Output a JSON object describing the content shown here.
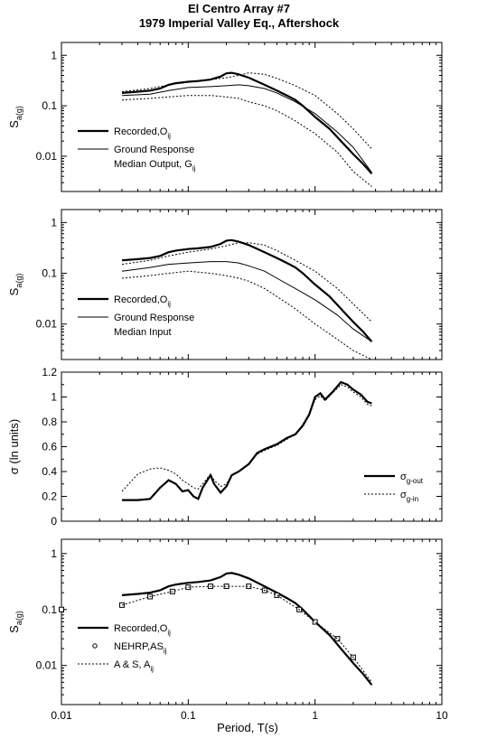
{
  "title": {
    "line1": "El Centro Array #7",
    "line2": "1979 Imperial Valley Eq., Aftershock"
  },
  "xlabel": "Period, T(s)",
  "chart_data": [
    {
      "type": "line",
      "ylabel": "S_a(g)",
      "xscale": "log",
      "yscale": "log",
      "xlim": [
        0.01,
        10
      ],
      "ylim": [
        0.002,
        1.8
      ],
      "yticks": [
        {
          "v": 0.01,
          "l": "0.01"
        },
        {
          "v": 0.1,
          "l": "0.1"
        },
        {
          "v": 1,
          "l": "1"
        }
      ],
      "legend_position": "lower-left",
      "legend": [
        {
          "series": 0,
          "lines": [
            "Recorded,O_ij"
          ]
        },
        {
          "series": 1,
          "lines": [
            "Ground Response",
            "Median Output, G_ij"
          ]
        }
      ],
      "series": [
        {
          "name": "Recorded,O_ij",
          "style": "thick",
          "x": [
            0.03,
            0.04,
            0.05,
            0.06,
            0.07,
            0.08,
            0.1,
            0.12,
            0.15,
            0.18,
            0.2,
            0.22,
            0.25,
            0.3,
            0.4,
            0.5,
            0.6,
            0.7,
            0.8,
            1.0,
            1.3,
            1.6,
            2.0,
            2.4,
            2.8
          ],
          "y": [
            0.18,
            0.19,
            0.2,
            0.22,
            0.26,
            0.28,
            0.3,
            0.31,
            0.33,
            0.38,
            0.44,
            0.45,
            0.42,
            0.36,
            0.26,
            0.2,
            0.16,
            0.13,
            0.1,
            0.06,
            0.035,
            0.02,
            0.011,
            0.007,
            0.0045
          ]
        },
        {
          "style": "thin",
          "x": [
            0.03,
            0.05,
            0.07,
            0.1,
            0.15,
            0.2,
            0.25,
            0.3,
            0.4,
            0.5,
            0.7,
            1.0,
            1.5,
            2.0,
            2.8
          ],
          "y": [
            0.16,
            0.17,
            0.2,
            0.23,
            0.24,
            0.25,
            0.26,
            0.25,
            0.22,
            0.18,
            0.12,
            0.07,
            0.03,
            0.015,
            0.0048
          ]
        },
        {
          "style": "dotted",
          "x": [
            0.03,
            0.05,
            0.07,
            0.1,
            0.15,
            0.2,
            0.25,
            0.3,
            0.4,
            0.5,
            0.7,
            1.0,
            1.5,
            2.0,
            2.8
          ],
          "y": [
            0.19,
            0.22,
            0.26,
            0.3,
            0.33,
            0.36,
            0.4,
            0.45,
            0.42,
            0.35,
            0.25,
            0.16,
            0.07,
            0.035,
            0.014
          ]
        },
        {
          "style": "dotted",
          "x": [
            0.03,
            0.05,
            0.07,
            0.1,
            0.15,
            0.2,
            0.25,
            0.3,
            0.4,
            0.5,
            0.7,
            1.0,
            1.5,
            2.0,
            2.8
          ],
          "y": [
            0.13,
            0.14,
            0.15,
            0.16,
            0.16,
            0.15,
            0.14,
            0.12,
            0.1,
            0.08,
            0.05,
            0.028,
            0.012,
            0.005,
            0.0025
          ]
        }
      ]
    },
    {
      "type": "line",
      "ylabel": "S_a(g)",
      "xscale": "log",
      "yscale": "log",
      "xlim": [
        0.01,
        10
      ],
      "ylim": [
        0.002,
        1.8
      ],
      "yticks": [
        {
          "v": 0.01,
          "l": "0.01"
        },
        {
          "v": 0.1,
          "l": "0.1"
        },
        {
          "v": 1,
          "l": "1"
        }
      ],
      "legend_position": "lower-left",
      "legend": [
        {
          "series": 0,
          "lines": [
            "Recorded,O_ij"
          ]
        },
        {
          "series": 1,
          "lines": [
            "Ground Response",
            "Median Input"
          ]
        }
      ],
      "series": [
        {
          "name": "Recorded,O_ij",
          "style": "thick",
          "x": [
            0.03,
            0.04,
            0.05,
            0.06,
            0.07,
            0.08,
            0.1,
            0.12,
            0.15,
            0.18,
            0.2,
            0.22,
            0.25,
            0.3,
            0.4,
            0.5,
            0.6,
            0.7,
            0.8,
            1.0,
            1.3,
            1.6,
            2.0,
            2.4,
            2.8
          ],
          "y": [
            0.18,
            0.19,
            0.2,
            0.22,
            0.26,
            0.28,
            0.3,
            0.31,
            0.33,
            0.38,
            0.44,
            0.45,
            0.42,
            0.36,
            0.26,
            0.2,
            0.16,
            0.13,
            0.1,
            0.06,
            0.035,
            0.02,
            0.011,
            0.007,
            0.0045
          ]
        },
        {
          "style": "thin",
          "x": [
            0.03,
            0.05,
            0.07,
            0.1,
            0.15,
            0.2,
            0.25,
            0.3,
            0.4,
            0.5,
            0.7,
            1.0,
            1.5,
            2.0,
            2.8
          ],
          "y": [
            0.11,
            0.13,
            0.15,
            0.16,
            0.17,
            0.17,
            0.16,
            0.14,
            0.11,
            0.08,
            0.05,
            0.03,
            0.015,
            0.008,
            0.0045
          ]
        },
        {
          "style": "dotted",
          "x": [
            0.03,
            0.05,
            0.07,
            0.1,
            0.15,
            0.2,
            0.25,
            0.3,
            0.4,
            0.5,
            0.7,
            1.0,
            1.5,
            2.0,
            2.8
          ],
          "y": [
            0.15,
            0.18,
            0.22,
            0.26,
            0.3,
            0.35,
            0.4,
            0.4,
            0.36,
            0.28,
            0.18,
            0.11,
            0.05,
            0.025,
            0.011
          ]
        },
        {
          "style": "dotted",
          "x": [
            0.03,
            0.05,
            0.07,
            0.1,
            0.15,
            0.2,
            0.25,
            0.3,
            0.4,
            0.5,
            0.7,
            1.0,
            1.5,
            2.0,
            2.8
          ],
          "y": [
            0.08,
            0.09,
            0.1,
            0.11,
            0.1,
            0.09,
            0.08,
            0.07,
            0.05,
            0.035,
            0.02,
            0.01,
            0.005,
            0.003,
            0.002
          ]
        }
      ]
    },
    {
      "type": "line",
      "ylabel": "σ (ln units)",
      "xscale": "log",
      "yscale": "linear",
      "xlim": [
        0.01,
        10
      ],
      "ylim": [
        0,
        1.2
      ],
      "yticks": [
        {
          "v": 0,
          "l": "0"
        },
        {
          "v": 0.2,
          "l": "0.2"
        },
        {
          "v": 0.4,
          "l": "0.4"
        },
        {
          "v": 0.6,
          "l": "0.6"
        },
        {
          "v": 0.8,
          "l": "0.8"
        },
        {
          "v": 1.0,
          "l": "1"
        },
        {
          "v": 1.2,
          "l": "1.2"
        }
      ],
      "legend_position": "lower-right",
      "legend": [
        {
          "series": 0,
          "lines": [
            "σ_g-out"
          ]
        },
        {
          "series": 1,
          "lines": [
            "σ_g-in"
          ]
        }
      ],
      "series": [
        {
          "name": "σ_g-out",
          "style": "thick",
          "x": [
            0.03,
            0.04,
            0.05,
            0.06,
            0.07,
            0.08,
            0.09,
            0.1,
            0.11,
            0.12,
            0.13,
            0.15,
            0.16,
            0.18,
            0.2,
            0.22,
            0.25,
            0.3,
            0.35,
            0.4,
            0.5,
            0.6,
            0.7,
            0.8,
            0.9,
            1.0,
            1.1,
            1.2,
            1.4,
            1.6,
            1.8,
            2.0,
            2.3,
            2.6,
            2.8
          ],
          "y": [
            0.17,
            0.17,
            0.18,
            0.27,
            0.33,
            0.3,
            0.24,
            0.25,
            0.2,
            0.18,
            0.27,
            0.37,
            0.3,
            0.23,
            0.28,
            0.37,
            0.4,
            0.46,
            0.55,
            0.58,
            0.62,
            0.67,
            0.7,
            0.77,
            0.86,
            1.0,
            1.03,
            0.98,
            1.05,
            1.12,
            1.1,
            1.06,
            1.02,
            0.96,
            0.95
          ]
        },
        {
          "name": "σ_g-in",
          "style": "dotted",
          "x": [
            0.03,
            0.04,
            0.05,
            0.06,
            0.07,
            0.08,
            0.09,
            0.1,
            0.11,
            0.12,
            0.13,
            0.15,
            0.16,
            0.18,
            0.2,
            0.22,
            0.25,
            0.3,
            0.35,
            0.4,
            0.5,
            0.6,
            0.7,
            0.8,
            0.9,
            1.0,
            1.1,
            1.2,
            1.4,
            1.6,
            1.8,
            2.0,
            2.3,
            2.6,
            2.8
          ],
          "y": [
            0.24,
            0.38,
            0.42,
            0.43,
            0.41,
            0.38,
            0.33,
            0.3,
            0.27,
            0.26,
            0.3,
            0.38,
            0.33,
            0.28,
            0.3,
            0.37,
            0.4,
            0.46,
            0.54,
            0.57,
            0.61,
            0.66,
            0.7,
            0.76,
            0.85,
            0.98,
            1.01,
            0.97,
            1.04,
            1.1,
            1.08,
            1.04,
            1.0,
            0.94,
            0.93
          ]
        }
      ]
    },
    {
      "type": "line",
      "ylabel": "S_a(g)",
      "xscale": "log",
      "yscale": "log",
      "xlim": [
        0.01,
        10
      ],
      "ylim": [
        0.002,
        1.8
      ],
      "yticks": [
        {
          "v": 0.01,
          "l": "0.01"
        },
        {
          "v": 0.1,
          "l": "0.1"
        },
        {
          "v": 1,
          "l": "1"
        }
      ],
      "xticks": [
        {
          "v": 0.01,
          "l": "0.01"
        },
        {
          "v": 0.1,
          "l": "0.1"
        },
        {
          "v": 1,
          "l": "1"
        },
        {
          "v": 10,
          "l": "10"
        }
      ],
      "legend_position": "lower-left",
      "legend": [
        {
          "series": 0,
          "lines": [
            "Recorded,O_ij"
          ]
        },
        {
          "series": 1,
          "lines": [
            "NEHRP,AS_ij"
          ]
        },
        {
          "series": 2,
          "lines": [
            "A & S, A_ij"
          ]
        }
      ],
      "series": [
        {
          "name": "Recorded,O_ij",
          "style": "thick",
          "x": [
            0.03,
            0.04,
            0.05,
            0.06,
            0.07,
            0.08,
            0.1,
            0.12,
            0.15,
            0.18,
            0.2,
            0.22,
            0.25,
            0.3,
            0.4,
            0.5,
            0.6,
            0.7,
            0.8,
            1.0,
            1.3,
            1.6,
            2.0,
            2.4,
            2.8
          ],
          "y": [
            0.18,
            0.19,
            0.2,
            0.22,
            0.26,
            0.28,
            0.3,
            0.31,
            0.33,
            0.38,
            0.44,
            0.45,
            0.42,
            0.36,
            0.26,
            0.2,
            0.16,
            0.13,
            0.1,
            0.06,
            0.035,
            0.02,
            0.011,
            0.007,
            0.0045
          ]
        },
        {
          "name": "NEHRP,AS_ij",
          "style": "squares",
          "x": [
            0.01,
            0.03,
            0.05,
            0.075,
            0.1,
            0.15,
            0.2,
            0.3,
            0.4,
            0.5,
            0.75,
            1.0,
            1.5,
            2.0
          ],
          "y": [
            0.1,
            0.12,
            0.17,
            0.21,
            0.25,
            0.26,
            0.26,
            0.26,
            0.22,
            0.18,
            0.1,
            0.06,
            0.03,
            0.014
          ]
        },
        {
          "name": "A & S, A_ij",
          "style": "dotted",
          "x": [
            0.03,
            0.05,
            0.075,
            0.1,
            0.15,
            0.2,
            0.3,
            0.4,
            0.5,
            0.75,
            1.0,
            1.5,
            2.0,
            2.8
          ],
          "y": [
            0.12,
            0.17,
            0.21,
            0.25,
            0.26,
            0.26,
            0.26,
            0.22,
            0.18,
            0.1,
            0.06,
            0.03,
            0.014,
            0.005
          ]
        }
      ]
    }
  ]
}
